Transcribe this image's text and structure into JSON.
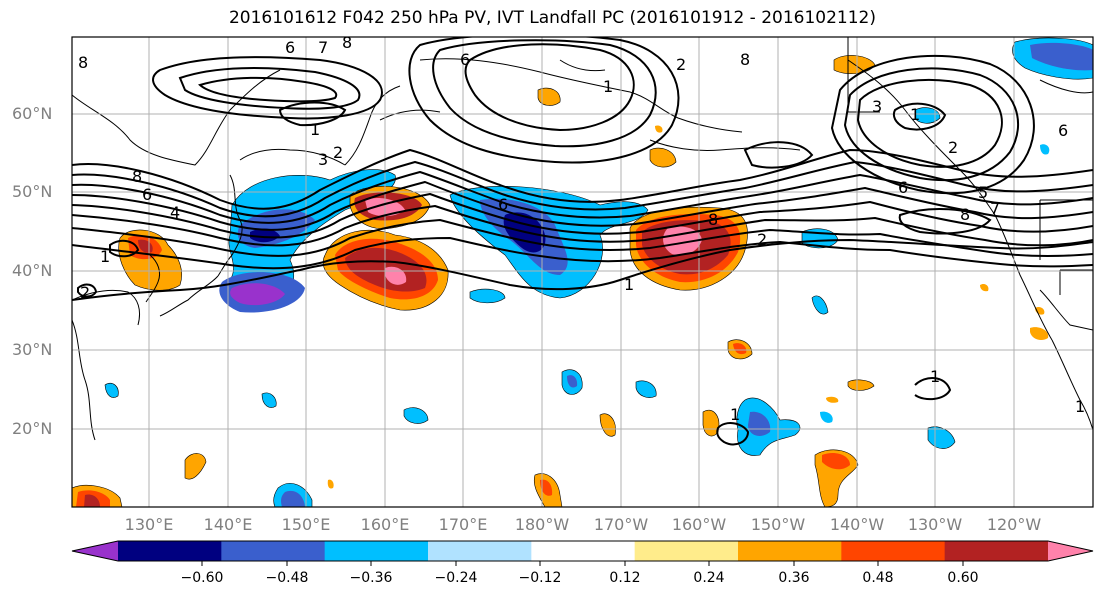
{
  "title": "2016101612 F042 250 hPa PV, IVT Landfall PC (2016101912 - 2016102112)",
  "lat_labels": [
    "60°N",
    "50°N",
    "40°N",
    "30°N",
    "20°N"
  ],
  "lon_labels": [
    "130°E",
    "140°E",
    "150°E",
    "160°E",
    "170°E",
    "180°W",
    "170°W",
    "160°W",
    "150°W",
    "140°W",
    "130°W",
    "120°W"
  ],
  "contour_labels": [
    "8",
    "6",
    "7",
    "8",
    "6",
    "1",
    "3",
    "2",
    "8",
    "6",
    "4",
    "1",
    "2",
    "6",
    "1",
    "2",
    "1",
    "8",
    "2",
    "3",
    "2",
    "6",
    "6",
    "8",
    "5",
    "7",
    "1",
    "1",
    "1",
    "8",
    "1"
  ],
  "colorbar": {
    "ticks": [
      "−0.60",
      "−0.48",
      "−0.36",
      "−0.24",
      "−0.12",
      "0.12",
      "0.24",
      "0.36",
      "0.48",
      "0.60"
    ],
    "colors": [
      "#9932cc",
      "#000080",
      "#3a5fcd",
      "#00bfff",
      "#b0e2ff",
      "#ffffff",
      "#ffec8b",
      "#ffa500",
      "#ff4500",
      "#b22222",
      "#ff82ab"
    ]
  }
}
